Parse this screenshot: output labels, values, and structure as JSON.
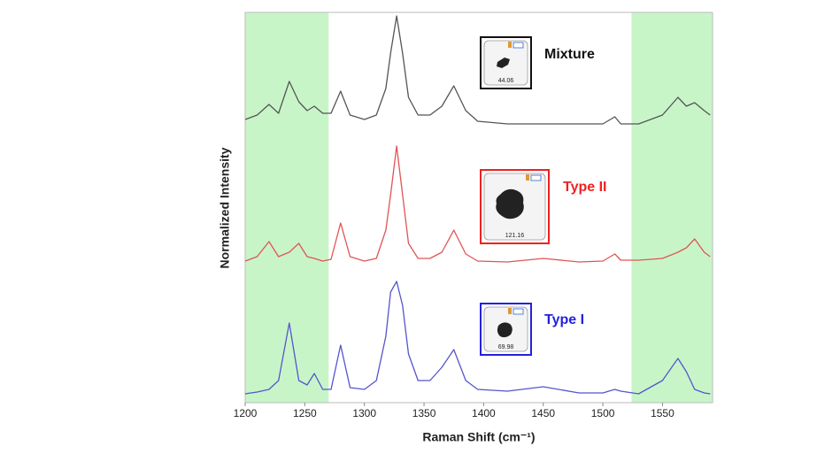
{
  "chart_data": {
    "type": "line",
    "xlabel": "Raman Shift (cm⁻¹)",
    "ylabel": "Normalized Intensity",
    "xlim": [
      1200,
      1592
    ],
    "xticks": [
      1200,
      1250,
      1300,
      1350,
      1400,
      1450,
      1500,
      1550
    ],
    "ylim": [
      0,
      4.41
    ],
    "shaded_regions": [
      [
        1200,
        1270
      ],
      [
        1524,
        1592
      ]
    ],
    "shade_color": "#c8f5c8",
    "x": [
      1200,
      1210,
      1220,
      1228,
      1237,
      1245,
      1252,
      1258,
      1265,
      1272,
      1280,
      1288,
      1300,
      1310,
      1318,
      1322,
      1327,
      1332,
      1337,
      1345,
      1355,
      1365,
      1375,
      1385,
      1395,
      1420,
      1450,
      1480,
      1500,
      1510,
      1515,
      1530,
      1550,
      1563,
      1570,
      1577,
      1585,
      1590
    ],
    "series": [
      {
        "name": "Mixture",
        "color": "#555555",
        "label_color": "#111111",
        "inset_label": "44.06",
        "values": [
          3.2,
          3.25,
          3.37,
          3.27,
          3.63,
          3.4,
          3.3,
          3.35,
          3.27,
          3.27,
          3.52,
          3.25,
          3.2,
          3.25,
          3.55,
          3.95,
          4.37,
          3.95,
          3.45,
          3.25,
          3.25,
          3.35,
          3.58,
          3.3,
          3.18,
          3.15,
          3.15,
          3.15,
          3.15,
          3.23,
          3.15,
          3.15,
          3.25,
          3.45,
          3.35,
          3.39,
          3.3,
          3.25
        ]
      },
      {
        "name": "Type II",
        "color": "#e05555",
        "label_color": "#ee2222",
        "inset_label": "121.16",
        "values": [
          1.6,
          1.65,
          1.82,
          1.65,
          1.7,
          1.8,
          1.65,
          1.63,
          1.6,
          1.62,
          2.03,
          1.65,
          1.6,
          1.63,
          1.95,
          2.35,
          2.9,
          2.35,
          1.8,
          1.63,
          1.63,
          1.7,
          1.95,
          1.68,
          1.6,
          1.59,
          1.63,
          1.59,
          1.6,
          1.68,
          1.61,
          1.61,
          1.63,
          1.7,
          1.75,
          1.85,
          1.7,
          1.65
        ]
      },
      {
        "name": "Type I",
        "color": "#5555cc",
        "label_color": "#2222dd",
        "inset_label": "69.98",
        "values": [
          0.1,
          0.12,
          0.15,
          0.25,
          0.9,
          0.25,
          0.2,
          0.33,
          0.15,
          0.15,
          0.65,
          0.17,
          0.15,
          0.25,
          0.75,
          1.25,
          1.37,
          1.1,
          0.55,
          0.25,
          0.25,
          0.4,
          0.6,
          0.25,
          0.15,
          0.13,
          0.18,
          0.11,
          0.11,
          0.15,
          0.13,
          0.1,
          0.25,
          0.5,
          0.35,
          0.15,
          0.11,
          0.1
        ]
      }
    ]
  }
}
